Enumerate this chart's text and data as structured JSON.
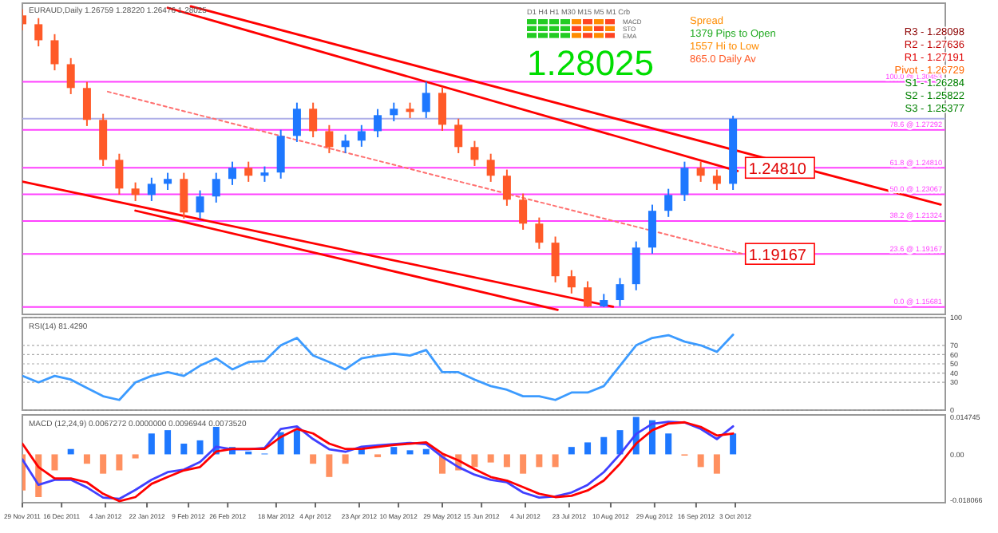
{
  "chart_data": [
    {
      "type": "candlestick",
      "title": "EURAUD,Daily 1.26759 1.28220 1.26476 1.28025",
      "x": [
        "2011-11-29",
        "2011-12-06",
        "2011-12-13",
        "2011-12-20",
        "2011-12-27",
        "2012-01-03",
        "2012-01-10",
        "2012-01-17",
        "2012-01-24",
        "2012-01-31",
        "2012-02-07",
        "2012-02-14",
        "2012-02-21",
        "2012-02-28",
        "2012-03-06",
        "2012-03-13",
        "2012-03-20",
        "2012-03-27",
        "2012-04-03",
        "2012-04-10",
        "2012-04-17",
        "2012-04-24",
        "2012-05-01",
        "2012-05-08",
        "2012-05-15",
        "2012-05-22",
        "2012-05-29",
        "2012-06-05",
        "2012-06-12",
        "2012-06-19",
        "2012-06-26",
        "2012-07-03",
        "2012-07-10",
        "2012-07-17",
        "2012-07-24",
        "2012-07-31",
        "2012-08-07",
        "2012-08-14",
        "2012-08-21",
        "2012-08-28",
        "2012-09-04",
        "2012-09-11",
        "2012-09-18",
        "2012-09-25",
        "2012-10-02"
      ],
      "ohlc": [
        [
          1.348,
          1.352,
          1.3382,
          1.3422
        ],
        [
          1.3422,
          1.3462,
          1.3277,
          1.3317
        ],
        [
          1.3317,
          1.3357,
          1.312,
          1.316
        ],
        [
          1.316,
          1.32,
          1.2964,
          1.3004
        ],
        [
          1.3004,
          1.3044,
          1.2755,
          1.2795
        ],
        [
          1.2795,
          1.2835,
          1.2493,
          1.2533
        ],
        [
          1.2533,
          1.2573,
          1.2305,
          1.2345
        ],
        [
          1.2345,
          1.2385,
          1.2263,
          1.2303
        ],
        [
          1.2303,
          1.2416,
          1.2263,
          1.2376
        ],
        [
          1.2376,
          1.2448,
          1.2336,
          1.2408
        ],
        [
          1.2408,
          1.2448,
          1.2148,
          1.2188
        ],
        [
          1.2188,
          1.2333,
          1.2148,
          1.2293
        ],
        [
          1.2293,
          1.2448,
          1.2253,
          1.2408
        ],
        [
          1.2408,
          1.2521,
          1.2368,
          1.2481
        ],
        [
          1.2481,
          1.2521,
          1.2389,
          1.2429
        ],
        [
          1.2429,
          1.249,
          1.2389,
          1.245
        ],
        [
          1.245,
          1.273,
          1.241,
          1.269
        ],
        [
          1.269,
          1.2908,
          1.265,
          1.2868
        ],
        [
          1.2868,
          1.2908,
          1.2681,
          1.2721
        ],
        [
          1.2721,
          1.2761,
          1.2577,
          1.2617
        ],
        [
          1.2617,
          1.2699,
          1.2577,
          1.2659
        ],
        [
          1.2659,
          1.2761,
          1.2619,
          1.2721
        ],
        [
          1.2721,
          1.2866,
          1.2681,
          1.2826
        ],
        [
          1.2826,
          1.2908,
          1.2786,
          1.2868
        ],
        [
          1.2868,
          1.2908,
          1.2807,
          1.2847
        ],
        [
          1.2847,
          1.3045,
          1.2807,
          1.2972
        ],
        [
          1.2972,
          1.3012,
          1.2723,
          1.2763
        ],
        [
          1.2763,
          1.2803,
          1.2577,
          1.2617
        ],
        [
          1.2617,
          1.2657,
          1.2493,
          1.2533
        ],
        [
          1.2533,
          1.2573,
          1.2389,
          1.2429
        ],
        [
          1.2429,
          1.2469,
          1.2232,
          1.2272
        ],
        [
          1.2272,
          1.2312,
          1.2075,
          1.2115
        ],
        [
          1.2115,
          1.2155,
          1.195,
          1.199
        ],
        [
          1.199,
          1.203,
          1.173,
          1.177
        ],
        [
          1.177,
          1.181,
          1.1657,
          1.1697
        ],
        [
          1.1697,
          1.1737,
          1.1568,
          1.1572
        ],
        [
          1.1572,
          1.1654,
          1.1568,
          1.1614
        ],
        [
          1.1614,
          1.1758,
          1.1574,
          1.1718
        ],
        [
          1.1718,
          1.1998,
          1.1678,
          1.1958
        ],
        [
          1.1958,
          1.2239,
          1.1918,
          1.2199
        ],
        [
          1.2199,
          1.2343,
          1.2159,
          1.2303
        ],
        [
          1.2303,
          1.2521,
          1.2263,
          1.2481
        ],
        [
          1.2481,
          1.2521,
          1.2389,
          1.2429
        ],
        [
          1.2429,
          1.2469,
          1.2336,
          1.2376
        ],
        [
          1.2376,
          1.2822,
          1.2336,
          1.28025
        ]
      ],
      "colors": [
        "#ff5a28",
        "#ff5a28",
        "#ff5a28",
        "#ff5a28",
        "#ff5a28",
        "#ff5a28",
        "#ff5a28",
        "#ff5a28",
        "#1e78ff",
        "#1e78ff",
        "#ff5a28",
        "#1e78ff",
        "#1e78ff",
        "#1e78ff",
        "#ff5a28",
        "#1e78ff",
        "#1e78ff",
        "#1e78ff",
        "#ff5a28",
        "#ff5a28",
        "#1e78ff",
        "#1e78ff",
        "#1e78ff",
        "#1e78ff",
        "#ff5a28",
        "#1e78ff",
        "#ff5a28",
        "#ff5a28",
        "#ff5a28",
        "#ff5a28",
        "#ff5a28",
        "#ff5a28",
        "#ff5a28",
        "#ff5a28",
        "#ff5a28",
        "#ff5a28",
        "#1e78ff",
        "#1e78ff",
        "#1e78ff",
        "#1e78ff",
        "#1e78ff",
        "#1e78ff",
        "#ff5a28",
        "#ff5a28",
        "#1e78ff"
      ],
      "series": [
        {
          "type": "line",
          "color": "#ff0000",
          "x": [
            "2012-02-10",
            "2012-12-31"
          ],
          "values": [
            1.354,
            1.224
          ]
        },
        {
          "type": "line",
          "color": "#ff0000",
          "x": [
            "2012-01-31",
            "2012-10-04"
          ],
          "values": [
            1.353,
            1.246
          ]
        },
        {
          "type": "line",
          "color": "#ff0000",
          "x": [
            "2011-11-29",
            "2012-08-11"
          ],
          "values": [
            1.239,
            1.157
          ]
        },
        {
          "type": "line",
          "color": "#ff0000",
          "x": [
            "2012-01-17",
            "2012-07-18"
          ],
          "values": [
            1.22,
            1.155
          ]
        },
        {
          "type": "line",
          "color": "#ff7070",
          "line_style": "dotted",
          "x": [
            "2012-01-05",
            "2012-10-06"
          ],
          "values": [
            1.298,
            1.19167
          ]
        }
      ],
      "xlim": [
        "2011-11-29",
        "2013-01-02"
      ],
      "ylim": [
        1.152,
        1.356
      ],
      "tick_labels": false,
      "ref_lines": [
        {
          "axis": "y",
          "value": 1.30453,
          "label": "100.0 @ 1.30453",
          "color": "#ff40ff"
        },
        {
          "axis": "y",
          "value": 1.27292,
          "label": "78.6 @ 1.27292",
          "color": "#ff40ff"
        },
        {
          "axis": "y",
          "value": 1.2481,
          "label": "61.8 @ 1.24810",
          "color": "#ff40ff"
        },
        {
          "axis": "y",
          "value": 1.23067,
          "label": "50.0 @ 1.23067",
          "color": "#ff40ff"
        },
        {
          "axis": "y",
          "value": 1.21324,
          "label": "38.2 @ 1.21324",
          "color": "#ff40ff"
        },
        {
          "axis": "y",
          "value": 1.19167,
          "label": "23.6 @ 1.19167",
          "color": "#ff40ff"
        },
        {
          "axis": "y",
          "value": 1.15681,
          "label": "0.0 @ 1.15681",
          "color": "#ff40ff"
        },
        {
          "axis": "y",
          "value": 1.28025,
          "color": "#b0b0e8"
        }
      ],
      "annotations": [
        "1.28025",
        "Spread",
        "1379 Pips to Open",
        "1557 Hi to Low",
        "865.0 Daily Av",
        "D1 H4 H1 M30 M15 M5 M1 Crb",
        "MACD",
        "STO",
        "EMA",
        "R3 - 1.28098",
        "R2 - 1.27636",
        "R1 - 1.27191",
        "Pivot - 1.26729",
        "S1 - 1.26284",
        "S2 - 1.25822",
        "S3 - 1.25377",
        {
          "text": "1.24810",
          "x": "2012-10-06",
          "y": 1.2481
        },
        {
          "text": "1.19167",
          "x": "2012-10-06",
          "y": 1.19167
        }
      ]
    },
    {
      "type": "line",
      "title": "RSI(14) 81.4290",
      "x": [
        "2011-11-29",
        "2011-12-06",
        "2011-12-13",
        "2011-12-20",
        "2011-12-27",
        "2012-01-03",
        "2012-01-10",
        "2012-01-17",
        "2012-01-24",
        "2012-01-31",
        "2012-02-07",
        "2012-02-14",
        "2012-02-21",
        "2012-02-28",
        "2012-03-06",
        "2012-03-13",
        "2012-03-20",
        "2012-03-27",
        "2012-04-03",
        "2012-04-10",
        "2012-04-17",
        "2012-04-24",
        "2012-05-01",
        "2012-05-08",
        "2012-05-15",
        "2012-05-22",
        "2012-05-29",
        "2012-06-05",
        "2012-06-12",
        "2012-06-19",
        "2012-06-26",
        "2012-07-03",
        "2012-07-10",
        "2012-07-17",
        "2012-07-24",
        "2012-07-31",
        "2012-08-07",
        "2012-08-14",
        "2012-08-21",
        "2012-08-28",
        "2012-09-04",
        "2012-09-11",
        "2012-09-18",
        "2012-09-25",
        "2012-10-02"
      ],
      "series": [
        {
          "color": "#3c9bff",
          "values": [
            37,
            30,
            37,
            33,
            24,
            15,
            11,
            30,
            37,
            41,
            37,
            48,
            56,
            44,
            52,
            53,
            70,
            78,
            59,
            52,
            44,
            56,
            59,
            61,
            59,
            65,
            41,
            41,
            33,
            26,
            22,
            15,
            15,
            11,
            19,
            19,
            26,
            48,
            70,
            78,
            81,
            74,
            70,
            63,
            81.429
          ]
        }
      ],
      "xlim": [
        "2011-11-29",
        "2013-01-02"
      ],
      "ylim": [
        0,
        100
      ],
      "yticks": [
        0,
        30,
        40,
        50,
        60,
        70,
        100
      ],
      "grid": "y",
      "tick_labels": "y"
    },
    {
      "type": "bar",
      "title": "MACD (12,24,9) 0.0067272 0.0000000 0.0096944 0.0073520",
      "x": [
        "2011-11-29",
        "2011-12-06",
        "2011-12-13",
        "2011-12-20",
        "2011-12-27",
        "2012-01-03",
        "2012-01-10",
        "2012-01-17",
        "2012-01-24",
        "2012-01-31",
        "2012-02-07",
        "2012-02-14",
        "2012-02-21",
        "2012-02-28",
        "2012-03-06",
        "2012-03-13",
        "2012-03-20",
        "2012-03-27",
        "2012-04-03",
        "2012-04-10",
        "2012-04-17",
        "2012-04-24",
        "2012-05-01",
        "2012-05-08",
        "2012-05-15",
        "2012-05-22",
        "2012-05-29",
        "2012-06-05",
        "2012-06-12",
        "2012-06-19",
        "2012-06-26",
        "2012-07-03",
        "2012-07-10",
        "2012-07-17",
        "2012-07-24",
        "2012-07-31",
        "2012-08-07",
        "2012-08-14",
        "2012-08-21",
        "2012-08-28",
        "2012-09-04",
        "2012-09-11",
        "2012-09-18",
        "2012-09-25",
        "2012-10-02"
      ],
      "series": [
        {
          "type": "bar",
          "colors": [
            "#ff9060",
            "#ff9060",
            "#ff9060",
            "#1e78ff",
            "#ff9060",
            "#ff9060",
            "#ff9060",
            "#ff9060",
            "#1e78ff",
            "#1e78ff",
            "#1e78ff",
            "#1e78ff",
            "#1e78ff",
            "#1e78ff",
            "#1e78ff",
            "#1e78ff",
            "#1e78ff",
            "#1e78ff",
            "#ff9060",
            "#ff9060",
            "#ff9060",
            "#1e78ff",
            "#ff9060",
            "#1e78ff",
            "#1e78ff",
            "#1e78ff",
            "#ff9060",
            "#ff9060",
            "#ff9060",
            "#ff9060",
            "#ff9060",
            "#ff9060",
            "#ff9060",
            "#ff9060",
            "#1e78ff",
            "#1e78ff",
            "#1e78ff",
            "#1e78ff",
            "#1e78ff",
            "#1e78ff",
            "#1e78ff",
            "#ff9060",
            "#ff9060",
            "#ff9060",
            "#1e78ff"
          ],
          "values": [
            -0.0142,
            -0.0168,
            -0.0063,
            0.0021,
            -0.0037,
            -0.0076,
            -0.0063,
            -0.0016,
            0.0082,
            0.0095,
            0.0042,
            0.0055,
            0.0108,
            0.0029,
            0.0011,
            0.0003,
            0.0087,
            0.0095,
            -0.0037,
            -0.0089,
            -0.0037,
            0.0021,
            -0.0011,
            0.0029,
            0.0016,
            0.0021,
            -0.0076,
            -0.0063,
            -0.005,
            -0.0032,
            -0.005,
            -0.0076,
            -0.005,
            -0.005,
            0.0029,
            0.0047,
            0.0068,
            0.0095,
            0.0147,
            0.0134,
            0.0082,
            -0.0005,
            -0.005,
            -0.0076,
            0.0082
          ]
        },
        {
          "type": "line",
          "color": "#4040ff",
          "values": [
            -0.002,
            -0.012,
            -0.01,
            -0.01,
            -0.013,
            -0.017,
            -0.0175,
            -0.014,
            -0.01,
            -0.007,
            -0.006,
            -0.003,
            0.003,
            0.002,
            0.002,
            0.0025,
            0.01,
            0.011,
            0.006,
            0.002,
            0.001,
            0.003,
            0.0035,
            0.004,
            0.0045,
            0.004,
            -0.001,
            -0.005,
            -0.008,
            -0.01,
            -0.011,
            -0.015,
            -0.017,
            -0.0165,
            -0.015,
            -0.012,
            -0.007,
            0,
            0.008,
            0.012,
            0.0128,
            0.0125,
            0.01,
            0.006,
            0.011
          ]
        },
        {
          "type": "line",
          "color": "#ff0000",
          "values": [
            0.0042,
            -0.005,
            -0.0095,
            -0.0095,
            -0.011,
            -0.0155,
            -0.0184,
            -0.0168,
            -0.0116,
            -0.0089,
            -0.0063,
            -0.005,
            0.0011,
            0.0021,
            0.0021,
            0.0021,
            0.0068,
            0.01,
            0.0082,
            0.0042,
            0.0021,
            0.0021,
            0.0029,
            0.0037,
            0.0042,
            0.0047,
            0.0003,
            -0.0024,
            -0.0058,
            -0.0089,
            -0.0103,
            -0.0129,
            -0.0155,
            -0.0168,
            -0.0163,
            -0.0142,
            -0.0103,
            -0.0037,
            0.0042,
            0.0095,
            0.0121,
            0.0126,
            0.0108,
            0.0074,
            0.0082
          ]
        }
      ],
      "xlim": [
        "2011-11-29",
        "2013-01-02"
      ],
      "xticks": [
        {
          "value": "2011-11-29",
          "label": "29 Nov 2011"
        },
        {
          "value": "2011-12-16",
          "label": "16 Dec 2011"
        },
        {
          "value": "2012-01-04",
          "label": "4 Jan 2012"
        },
        {
          "value": "2012-01-22",
          "label": "22 Jan 2012"
        },
        {
          "value": "2012-02-09",
          "label": "9 Feb 2012"
        },
        {
          "value": "2012-02-26",
          "label": "26 Feb 2012"
        },
        {
          "value": "2012-03-18",
          "label": "18 Mar 2012"
        },
        {
          "value": "2012-04-04",
          "label": "4 Apr 2012"
        },
        {
          "value": "2012-04-23",
          "label": "23 Apr 2012"
        },
        {
          "value": "2012-05-10",
          "label": "10 May 2012"
        },
        {
          "value": "2012-05-29",
          "label": "29 May 2012"
        },
        {
          "value": "2012-06-15",
          "label": "15 Jun 2012"
        },
        {
          "value": "2012-07-04",
          "label": "4 Jul 2012"
        },
        {
          "value": "2012-07-23",
          "label": "23 Jul 2012"
        },
        {
          "value": "2012-08-10",
          "label": "10 Aug 2012"
        },
        {
          "value": "2012-08-29",
          "label": "29 Aug 2012"
        },
        {
          "value": "2012-09-16",
          "label": "16 Sep 2012"
        },
        {
          "value": "2012-10-03",
          "label": "3 Oct 2012"
        }
      ],
      "ylim": [
        -0.019,
        0.0155
      ],
      "yticks": [
        {
          "value": 0.014745,
          "label": "0.014745"
        },
        {
          "value": 0,
          "label": "0.00"
        },
        {
          "value": -0.018066,
          "label": "-0.018066"
        }
      ]
    }
  ]
}
